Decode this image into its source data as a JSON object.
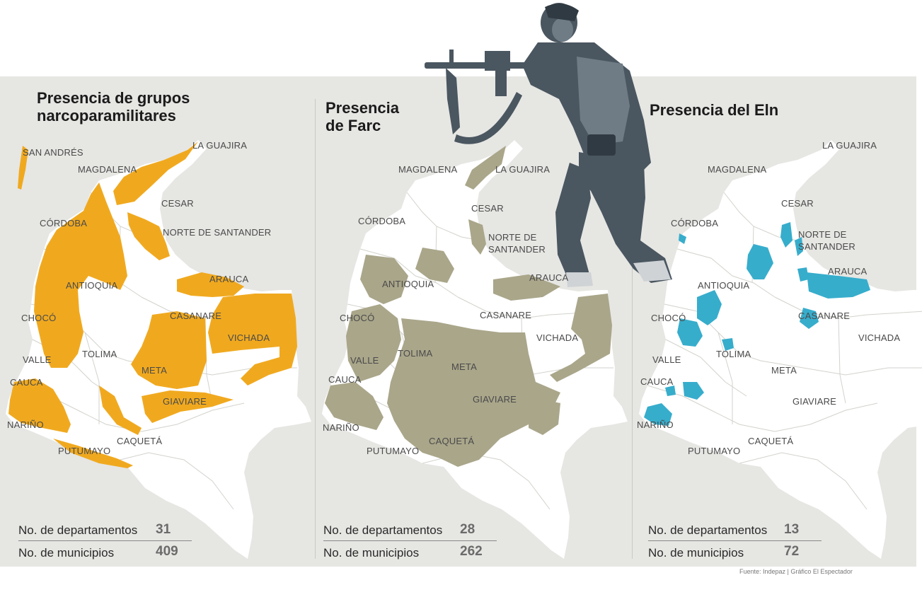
{
  "colors": {
    "narco": "#f0a91f",
    "farc": "#aaa68a",
    "eln": "#37adcc",
    "map_base": "#ffffff",
    "background": "#e6e6e3"
  },
  "panels": [
    {
      "title": "Presencia de grupos narcoparamilitares",
      "labels": [
        "SAN ANDRÉS",
        "LA GUAJIRA",
        "MAGDALENA",
        "CESAR",
        "CÓRDOBA",
        "NORTE DE SANTANDER",
        "ARAUCA",
        "ANTIOQUIA",
        "CHOCÓ",
        "CASANARE",
        "VICHADA",
        "VALLE",
        "TOLIMA",
        "META",
        "CAUCA",
        "GIAVIARE",
        "NARIÑO",
        "CAQUETÁ",
        "PUTUMAYO"
      ],
      "stats": {
        "dept_label": "No. de departamentos",
        "dept_value": "31",
        "mun_label": "No. de municipios",
        "mun_value": "409"
      }
    },
    {
      "title": "Presencia de Farc",
      "labels": [
        "MAGDALENA",
        "LA GUAJIRA",
        "CESAR",
        "CÓRDOBA",
        "NORTE DE SANTANDER",
        "ARAUCA",
        "ANTIOQUIA",
        "CHOCÓ",
        "CASANARE",
        "VICHADA",
        "VALLE",
        "TOLIMA",
        "META",
        "CAUCA",
        "GIAVIARE",
        "NARIÑO",
        "CAQUETÁ",
        "PUTUMAYO"
      ],
      "stats": {
        "dept_label": "No. de departamentos",
        "dept_value": "28",
        "mun_label": "No. de municipios",
        "mun_value": "262"
      }
    },
    {
      "title": "Presencia del Eln",
      "labels": [
        "LA GUAJIRA",
        "MAGDALENA",
        "CESAR",
        "CÓRDOBA",
        "NORTE DE SANTANDER",
        "ARAUCA",
        "ANTIOQUIA",
        "CHOCÓ",
        "CASANARE",
        "VICHADA",
        "VALLE",
        "TOLIMA",
        "META",
        "CAUCA",
        "GIAVIARE",
        "NARIÑO",
        "CAQUETÁ",
        "PUTUMAYO"
      ],
      "stats": {
        "dept_label": "No. de departamentos",
        "dept_value": "13",
        "mun_label": "No. de municipios",
        "mun_value": "72"
      }
    }
  ],
  "credit": "Fuente: Indepaz | Gráfico El Espectador"
}
